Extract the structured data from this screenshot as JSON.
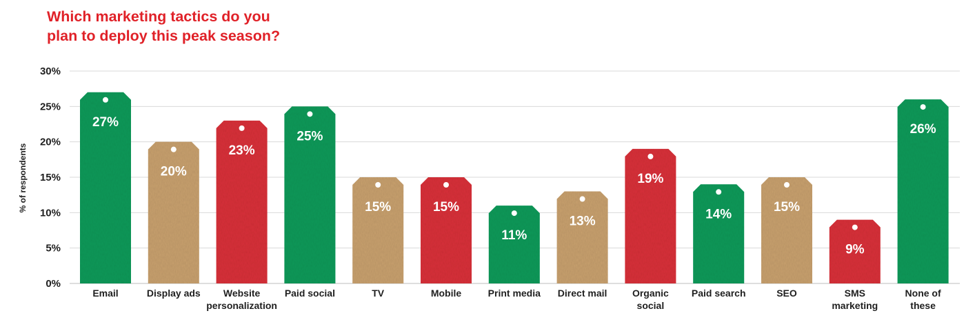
{
  "title_lines": [
    "Which marketing tactics do you",
    "plan to deploy this peak season?"
  ],
  "colors": {
    "title": "#e02128",
    "green": "#149a5a",
    "tan": "#c8a06e",
    "red": "#d8333a",
    "grid": "#d9d9d9",
    "text": "#1f1f1f"
  },
  "chart_data": {
    "type": "bar",
    "title": "Which marketing tactics do you plan to deploy this peak season?",
    "ylabel": "% of respondents",
    "xlabel": "",
    "ylim": [
      0,
      30
    ],
    "yticks": [
      0,
      5,
      10,
      15,
      20,
      25,
      30
    ],
    "ytick_labels": [
      "0%",
      "5%",
      "10%",
      "15%",
      "20%",
      "25%",
      "30%"
    ],
    "grid": true,
    "categories": [
      [
        "Email"
      ],
      [
        "Display ads"
      ],
      [
        "Website",
        "personalization"
      ],
      [
        "Paid social"
      ],
      [
        "TV"
      ],
      [
        "Mobile"
      ],
      [
        "Print media"
      ],
      [
        "Direct mail"
      ],
      [
        "Organic",
        "social"
      ],
      [
        "Paid search"
      ],
      [
        "SEO"
      ],
      [
        "SMS",
        "marketing"
      ],
      [
        "None of",
        "these"
      ]
    ],
    "values": [
      27,
      20,
      23,
      25,
      15,
      15,
      11,
      13,
      19,
      14,
      15,
      9,
      26
    ],
    "data_labels": [
      "27%",
      "20%",
      "23%",
      "25%",
      "15%",
      "15%",
      "11%",
      "13%",
      "19%",
      "14%",
      "15%",
      "9%",
      "26%"
    ],
    "bar_colors": [
      "green",
      "tan",
      "red",
      "green",
      "tan",
      "red",
      "green",
      "tan",
      "red",
      "green",
      "tan",
      "red",
      "green"
    ]
  }
}
